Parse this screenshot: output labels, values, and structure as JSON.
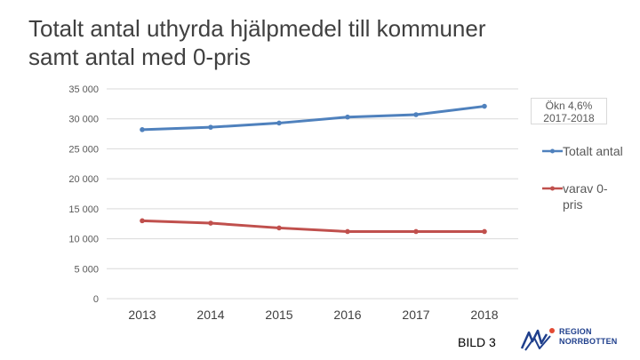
{
  "slide": {
    "title_line1": "Totalt antal uthyrda hjälpmedel till kommuner",
    "title_line2": "samt antal med 0-pris",
    "page_label": "BILD 3"
  },
  "logo": {
    "line1": "REGION",
    "line2": "NORRBOTTEN",
    "color": "#1f3f8c"
  },
  "annotation": {
    "line1": "Ökn 4,6%",
    "line2": "2017-2018"
  },
  "chart_data": {
    "type": "line",
    "title": "",
    "xlabel": "",
    "ylabel": "",
    "categories": [
      "2013",
      "2014",
      "2015",
      "2016",
      "2017",
      "2018"
    ],
    "y_ticks": [
      "35 000",
      "30 000",
      "25 000",
      "20 000",
      "15 000",
      "10 000",
      "5 000",
      "0"
    ],
    "ylim": [
      0,
      35000
    ],
    "grid": true,
    "legend_position": "right",
    "series": [
      {
        "name": "Totalt antal",
        "color": "#4f81bd",
        "values": [
          28200,
          28600,
          29300,
          30300,
          30700,
          32100
        ]
      },
      {
        "name_line1": "varav 0-",
        "name_line2": "pris",
        "color": "#c0504d",
        "values": [
          13000,
          12600,
          11800,
          11200,
          11200,
          11200
        ]
      }
    ]
  }
}
